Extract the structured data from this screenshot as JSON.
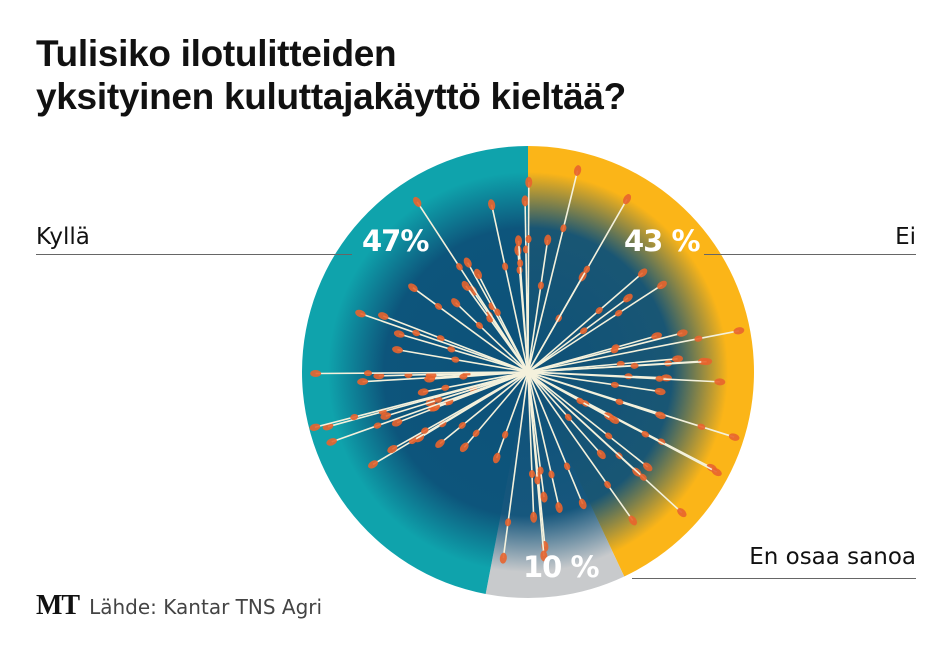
{
  "chart_data": {
    "type": "pie",
    "title": "Tulisiko ilotulitteiden yksityinen kuluttajakäyttö kieltää?",
    "title_lines": [
      "Tulisiko ilotulitteiden",
      "yksityinen kuluttajakäyttö kieltää?"
    ],
    "slices": [
      {
        "label": "Ei",
        "value": 43,
        "value_label": "43 %",
        "color": "#FBB518"
      },
      {
        "label": "En osaa sanoa",
        "value": 10,
        "value_label": "10 %",
        "color": "#C8CACC"
      },
      {
        "label": "Kyllä",
        "value": 47,
        "value_label": "47%",
        "color": "#0FA3AC"
      }
    ],
    "start": "top, clockwise",
    "overlay_color": "#0D5179",
    "firework_color": "#E8642E"
  },
  "footer": {
    "logo": "MT",
    "source": "Lähde: Kantar TNS Agri"
  }
}
